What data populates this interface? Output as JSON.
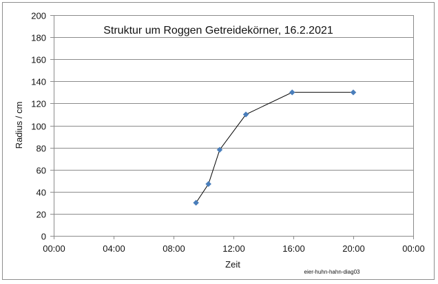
{
  "chart_data": {
    "type": "line",
    "title": "Struktur um Roggen Getreidekörner, 16.2.2021",
    "xlabel": "Zeit",
    "ylabel": "Radius / cm",
    "x_unit": "time of day (hours)",
    "xlim": [
      0,
      24
    ],
    "ylim": [
      0,
      200
    ],
    "x_ticks": [
      0,
      4,
      8,
      12,
      16,
      20,
      24
    ],
    "x_tick_labels": [
      "00:00",
      "04:00",
      "08:00",
      "12:00",
      "16:00",
      "20:00",
      "00:00"
    ],
    "y_ticks": [
      0,
      20,
      40,
      60,
      80,
      100,
      120,
      140,
      160,
      180,
      200
    ],
    "y_tick_labels": [
      "0",
      "20",
      "40",
      "60",
      "80",
      "100",
      "120",
      "140",
      "160",
      "180",
      "200"
    ],
    "grid": "horizontal",
    "series": [
      {
        "color": "#4a7ebb",
        "line_color": "#000000",
        "marker": "diamond",
        "x": [
          9.5,
          10.33,
          11.08,
          12.83,
          15.92,
          20.0
        ],
        "values": [
          30,
          47,
          78,
          110,
          130,
          130
        ]
      }
    ],
    "annotation": "eier-huhn-hahn-diag03"
  }
}
